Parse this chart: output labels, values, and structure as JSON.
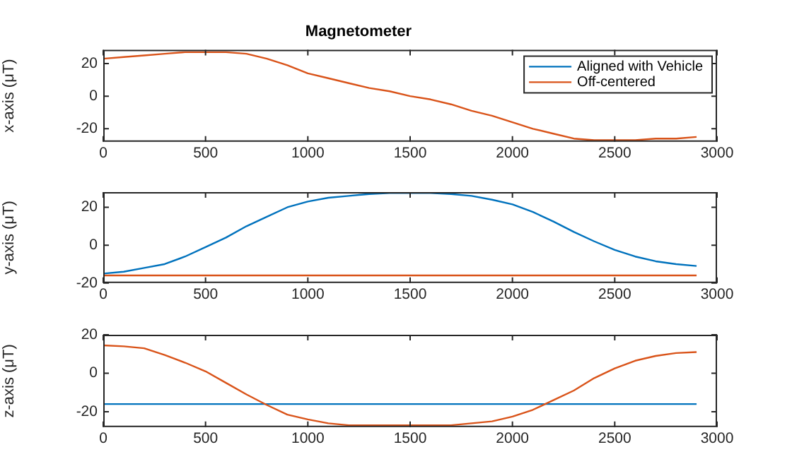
{
  "chart_data": [
    {
      "type": "line",
      "title": "Magnetometer",
      "ylabel": "x-axis (μT)",
      "legend": "top right",
      "grid": false,
      "marker": "none",
      "line_style": "solid",
      "x": [
        0,
        100,
        200,
        300,
        400,
        500,
        600,
        700,
        800,
        900,
        1000,
        1100,
        1200,
        1300,
        1400,
        1500,
        1600,
        1700,
        1800,
        1900,
        2000,
        2100,
        2200,
        2300,
        2400,
        2500,
        2600,
        2700,
        2800,
        2900
      ],
      "xlim": [
        0,
        3000
      ],
      "xticks": [
        0,
        500,
        1000,
        1500,
        2000,
        2500,
        3000
      ],
      "ylim": [
        -28,
        28.5
      ],
      "yticks": [
        -20,
        0,
        20
      ],
      "series": [
        {
          "name": "Aligned with Vehicle",
          "color": "#0072bd",
          "values": [
            null,
            null,
            null,
            null,
            null,
            null,
            null,
            null,
            null,
            null,
            null,
            null,
            null,
            null,
            null,
            null,
            null,
            null,
            null,
            null,
            null,
            null,
            null,
            null,
            null,
            null,
            null,
            null,
            null,
            null
          ]
        },
        {
          "name": "Off-centered",
          "color": "#d95319",
          "values": [
            23,
            24,
            25,
            26,
            27,
            27,
            27,
            26,
            23,
            19,
            14,
            11,
            8,
            5,
            3,
            0,
            -2,
            -5,
            -9,
            -12,
            -16,
            -20,
            -23,
            -26,
            -27,
            -27,
            -27,
            -26,
            -26,
            -25
          ]
        }
      ]
    },
    {
      "type": "line",
      "ylabel": "y-axis (μT)",
      "grid": false,
      "marker": "none",
      "line_style": "solid",
      "x": [
        0,
        100,
        200,
        300,
        400,
        500,
        600,
        700,
        800,
        900,
        1000,
        1100,
        1200,
        1300,
        1400,
        1500,
        1600,
        1700,
        1800,
        1900,
        2000,
        2100,
        2200,
        2300,
        2400,
        2500,
        2600,
        2700,
        2800,
        2900
      ],
      "xlim": [
        0,
        3000
      ],
      "xticks": [
        0,
        500,
        1000,
        1500,
        2000,
        2500,
        3000
      ],
      "ylim": [
        -20,
        28
      ],
      "yticks": [
        -20,
        0,
        20
      ],
      "series": [
        {
          "color": "#0072bd",
          "values": [
            -15,
            -14,
            -12,
            -10,
            -6,
            -1,
            4,
            10,
            15,
            20,
            23,
            25,
            26,
            27,
            27.5,
            27.5,
            27.5,
            27,
            26,
            24,
            21.5,
            17.5,
            12.5,
            7,
            2,
            -2.5,
            -6,
            -8.5,
            -10,
            -11
          ]
        },
        {
          "color": "#d95319",
          "values": [
            -16,
            -16,
            -16,
            -16,
            -16,
            -16,
            -16,
            -16,
            -16,
            -16,
            -16,
            -16,
            -16,
            -16,
            -16,
            -16,
            -16,
            -16,
            -16,
            -16,
            -16,
            -16,
            -16,
            -16,
            -16,
            -16,
            -16,
            -16,
            -16,
            -16
          ]
        }
      ]
    },
    {
      "type": "line",
      "ylabel": "z-axis (μT)",
      "grid": false,
      "marker": "none",
      "line_style": "solid",
      "x": [
        0,
        100,
        200,
        300,
        400,
        500,
        600,
        700,
        800,
        900,
        1000,
        1100,
        1200,
        1300,
        1400,
        1500,
        1600,
        1700,
        1800,
        1900,
        2000,
        2100,
        2200,
        2300,
        2400,
        2500,
        2600,
        2700,
        2800,
        2900
      ],
      "xlim": [
        0,
        3000
      ],
      "xticks": [
        0,
        500,
        1000,
        1500,
        2000,
        2500,
        3000
      ],
      "ylim": [
        -28,
        20
      ],
      "yticks": [
        -20,
        0,
        20
      ],
      "series": [
        {
          "color": "#0072bd",
          "values": [
            -16,
            -16,
            -16,
            -16,
            -16,
            -16,
            -16,
            -16,
            -16,
            -16,
            -16,
            -16,
            -16,
            -16,
            -16,
            -16,
            -16,
            -16,
            -16,
            -16,
            -16,
            -16,
            -16,
            -16,
            -16,
            -16,
            -16,
            -16,
            -16,
            -16
          ]
        },
        {
          "color": "#d95319",
          "values": [
            14.5,
            14,
            13,
            9.5,
            5.5,
            1,
            -5,
            -11,
            -16.5,
            -21.5,
            -24,
            -26,
            -27,
            -27,
            -27,
            -27,
            -27,
            -27,
            -26,
            -25,
            -22.5,
            -19,
            -14,
            -9,
            -2.5,
            2.5,
            6.5,
            9,
            10.5,
            11
          ]
        }
      ]
    }
  ]
}
